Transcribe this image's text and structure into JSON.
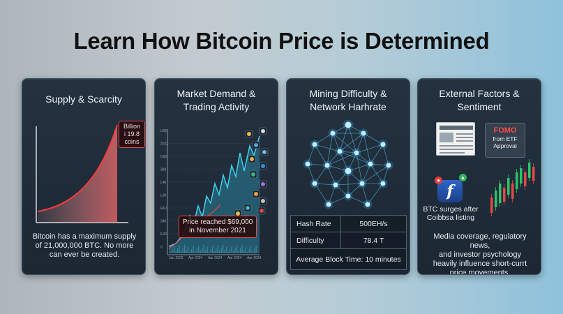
{
  "page": {
    "title": "Learn How Bitcoin Price is Determined"
  },
  "cards": [
    {
      "title_line1": "Supply & Scarcity",
      "callout": [
        "Billion",
        "i 19.8",
        "coins"
      ],
      "text": [
        "Bitcoin has a maximum supply",
        "of 21,000,000 BTC. No more",
        "can ever be created."
      ]
    },
    {
      "title_line1": "Market Demand &",
      "title_line2": "Trading Activity",
      "y_ticks": [
        "USD",
        "2023",
        "C00",
        "389",
        "L46",
        "L00",
        "EKJ",
        "240",
        "E40",
        "d"
      ],
      "x_ticks": [
        "Jan 2023",
        "Apr 2024",
        "Apr 2024",
        "Apr 2024",
        "Apr 2024"
      ],
      "callout": [
        "Price reached $69,000",
        "in November 2021"
      ]
    },
    {
      "title_line1": "Mining Difficulty &",
      "title_line2": "Network Harhrate",
      "stats": [
        {
          "label": "Hash Rate",
          "value": "500EH/s"
        },
        {
          "label": "Difficulty",
          "value": "78.4 T"
        }
      ],
      "block_time": "Average Block Time:  10 minutes"
    },
    {
      "title_line1": "External Factors &",
      "title_line2": "Sentiment",
      "fomo": [
        "FOMO",
        "from ETF",
        "Approval"
      ],
      "app_letter": "f",
      "surge": [
        "BTC surges after",
        "Coibbsa listing"
      ],
      "text": [
        "Media coverage, regulatory news,",
        "and investor psychology",
        "heavily influence short-currt",
        "price movements."
      ]
    }
  ],
  "colors": {
    "accent_red": "#e04848",
    "accent_cyan": "#3fd2f0",
    "node_blue": "#7fd8ff"
  }
}
